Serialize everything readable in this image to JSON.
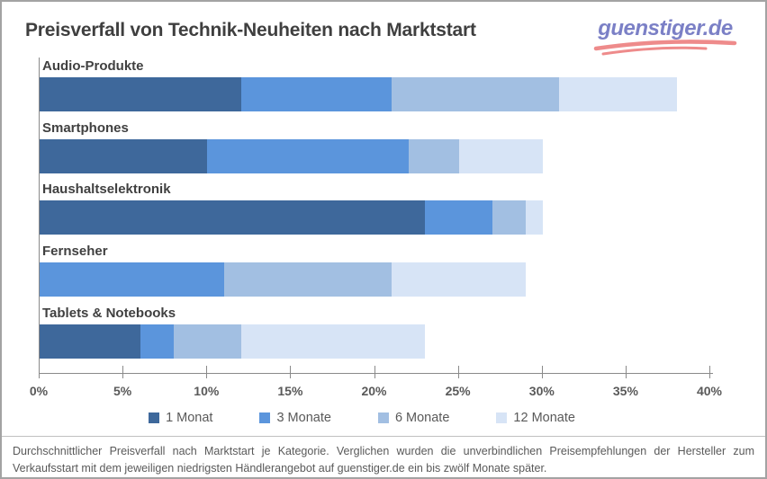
{
  "header": {
    "title": "Preisverfall von Technik-Neuheiten nach Marktstart",
    "logo_text": "guenstiger.de",
    "logo_text_color": "#7b80c6",
    "logo_swoosh_color": "#ee8b8b"
  },
  "chart_data": {
    "type": "bar",
    "orientation": "horizontal",
    "stacked": true,
    "unit": "%",
    "note": "values are cumulative average price decline after market launch; rendered segment width is the difference from the previous stage",
    "categories": [
      "Audio-Produkte",
      "Smartphones",
      "Haushaltselektronik",
      "Fernseher",
      "Tablets & Notebooks"
    ],
    "series": [
      {
        "name": "1 Monat",
        "color": "#3E689B",
        "cumulative_values": [
          12,
          10,
          23,
          0,
          6
        ]
      },
      {
        "name": "3 Monate",
        "color": "#5B95DC",
        "cumulative_values": [
          21,
          22,
          27,
          11,
          8
        ]
      },
      {
        "name": "6 Monate",
        "color": "#A2BFE2",
        "cumulative_values": [
          31,
          25,
          29,
          21,
          12
        ]
      },
      {
        "name": "12 Monate",
        "color": "#D7E4F6",
        "cumulative_values": [
          38,
          30,
          30,
          29,
          23
        ]
      }
    ],
    "xlim": [
      0,
      40
    ],
    "x_tick_labels": [
      "0%",
      "5%",
      "10%",
      "15%",
      "20%",
      "25%",
      "30%",
      "35%",
      "40%"
    ],
    "grid": false,
    "legend_position": "bottom"
  },
  "footer": {
    "text": "Durchschnittlicher Preisverfall nach Marktstart je Kategorie. Verglichen wurden die unverbindlichen Preisempfehlungen der Hersteller zum Verkaufsstart mit dem jeweiligen niedrigsten Händlerangebot auf guenstiger.de ein bis zwölf Monate später."
  }
}
